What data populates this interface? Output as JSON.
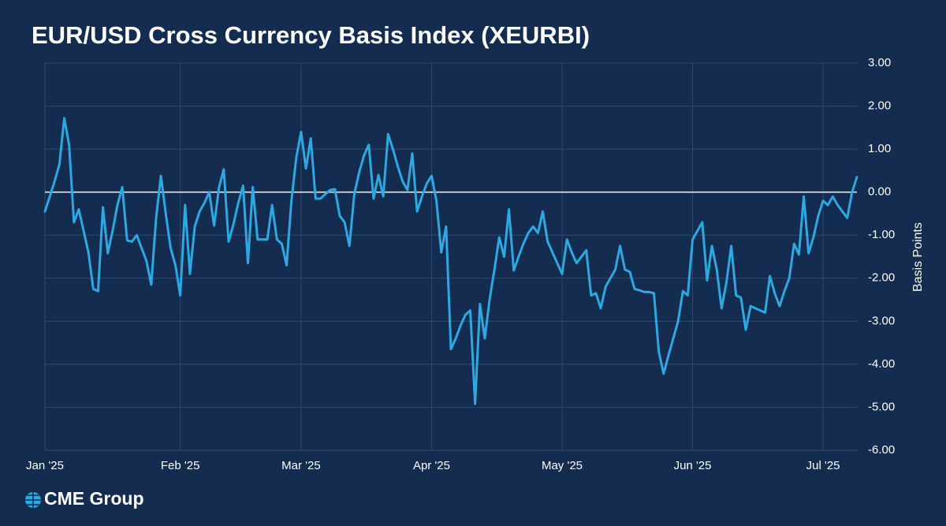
{
  "chart_data": {
    "type": "line",
    "title": "EUR/USD Cross Currency Basis Index (XEURBI)",
    "y_axis_label": "Basis Points",
    "logo": "CME Group",
    "categories": [
      "Jan '25",
      null,
      null,
      null,
      null,
      null,
      null,
      null,
      null,
      null,
      null,
      null,
      null,
      null,
      null,
      null,
      null,
      null,
      null,
      null,
      null,
      null,
      null,
      null,
      null,
      null,
      null,
      null,
      "Feb '25",
      null,
      null,
      null,
      null,
      null,
      null,
      null,
      null,
      null,
      null,
      null,
      null,
      null,
      null,
      null,
      null,
      null,
      null,
      null,
      null,
      null,
      null,
      null,
      null,
      "Mar '25",
      null,
      null,
      null,
      null,
      null,
      null,
      null,
      null,
      null,
      null,
      null,
      null,
      null,
      null,
      null,
      null,
      null,
      null,
      null,
      null,
      null,
      null,
      null,
      null,
      null,
      null,
      "Apr '25",
      null,
      null,
      null,
      null,
      null,
      null,
      null,
      null,
      null,
      null,
      null,
      null,
      null,
      null,
      null,
      null,
      null,
      null,
      null,
      null,
      null,
      null,
      null,
      null,
      null,
      null,
      "May '25",
      null,
      null,
      null,
      null,
      null,
      null,
      null,
      null,
      null,
      null,
      null,
      null,
      null,
      null,
      null,
      null,
      null,
      null,
      null,
      null,
      null,
      null,
      null,
      null,
      null,
      null,
      "Jun '25",
      null,
      null,
      null,
      null,
      null,
      null,
      null,
      null,
      null,
      null,
      null,
      null,
      null,
      null,
      null,
      null,
      null,
      null,
      null,
      null,
      null,
      null,
      null,
      null,
      null,
      null,
      "Jul '25",
      null,
      null,
      null,
      null,
      null,
      null,
      null
    ],
    "series": [
      {
        "name": "XEURBI",
        "color": "#2ea8e2",
        "values": [
          -0.45,
          -0.1,
          0.25,
          0.65,
          1.72,
          1.1,
          -0.7,
          -0.4,
          -0.9,
          -1.4,
          -2.25,
          -2.3,
          -0.35,
          -1.42,
          -0.9,
          -0.3,
          0.12,
          -1.12,
          -1.15,
          -1.0,
          -1.3,
          -1.6,
          -2.15,
          -0.6,
          0.38,
          -0.5,
          -1.3,
          -1.7,
          -2.4,
          -0.3,
          -1.9,
          -0.8,
          -0.45,
          -0.25,
          0.0,
          -0.78,
          0.1,
          0.53,
          -1.15,
          -0.75,
          -0.25,
          0.15,
          -1.65,
          0.12,
          -1.1,
          -1.1,
          -1.1,
          -0.3,
          -1.1,
          -1.2,
          -1.7,
          -0.2,
          0.8,
          1.4,
          0.55,
          1.25,
          -0.15,
          -0.15,
          -0.05,
          0.05,
          0.07,
          -0.55,
          -0.7,
          -1.25,
          -0.05,
          0.45,
          0.85,
          1.1,
          -0.15,
          0.4,
          -0.1,
          1.35,
          1.0,
          0.6,
          0.25,
          0.05,
          0.9,
          -0.45,
          -0.1,
          0.2,
          0.38,
          -0.2,
          -1.4,
          -0.8,
          -3.65,
          -3.4,
          -3.1,
          -2.85,
          -2.75,
          -4.92,
          -2.6,
          -3.4,
          -2.5,
          -1.8,
          -1.05,
          -1.5,
          -0.4,
          -1.82,
          -1.5,
          -1.2,
          -0.95,
          -0.8,
          -0.95,
          -0.45,
          -1.15,
          -1.4,
          -1.65,
          -1.9,
          -1.1,
          -1.4,
          -1.65,
          -1.5,
          -1.35,
          -2.4,
          -2.35,
          -2.7,
          -2.2,
          -2.0,
          -1.8,
          -1.25,
          -1.8,
          -1.85,
          -2.25,
          -2.28,
          -2.32,
          -2.32,
          -2.35,
          -3.7,
          -4.22,
          -3.8,
          -3.4,
          -3.0,
          -2.3,
          -2.4,
          -1.1,
          -0.9,
          -0.7,
          -2.05,
          -1.25,
          -1.8,
          -2.7,
          -2.1,
          -1.25,
          -2.4,
          -2.45,
          -3.2,
          -2.65,
          -2.7,
          -2.75,
          -2.8,
          -1.95,
          -2.35,
          -2.65,
          -2.3,
          -2.0,
          -1.2,
          -1.45,
          -0.1,
          -1.42,
          -1.05,
          -0.55,
          -0.2,
          -0.3,
          -0.1,
          -0.3,
          -0.45,
          -0.6,
          0.0,
          0.35
        ]
      }
    ],
    "ylim": [
      -6,
      3
    ],
    "yticks": [
      {
        "value": -6,
        "label": "-6.00"
      },
      {
        "value": -5,
        "label": "-5.00"
      },
      {
        "value": -4,
        "label": "-4.00"
      },
      {
        "value": -3,
        "label": "-3.00"
      },
      {
        "value": -2,
        "label": "-2.00"
      },
      {
        "value": -1,
        "label": "-1.00"
      },
      {
        "value": 0,
        "label": "0.00"
      },
      {
        "value": 1,
        "label": "1.00"
      },
      {
        "value": 2,
        "label": "2.00"
      },
      {
        "value": 3,
        "label": "3.00"
      }
    ],
    "y_axis_side": "right",
    "grid": true,
    "zero_line": true,
    "background": "#142c4f"
  }
}
